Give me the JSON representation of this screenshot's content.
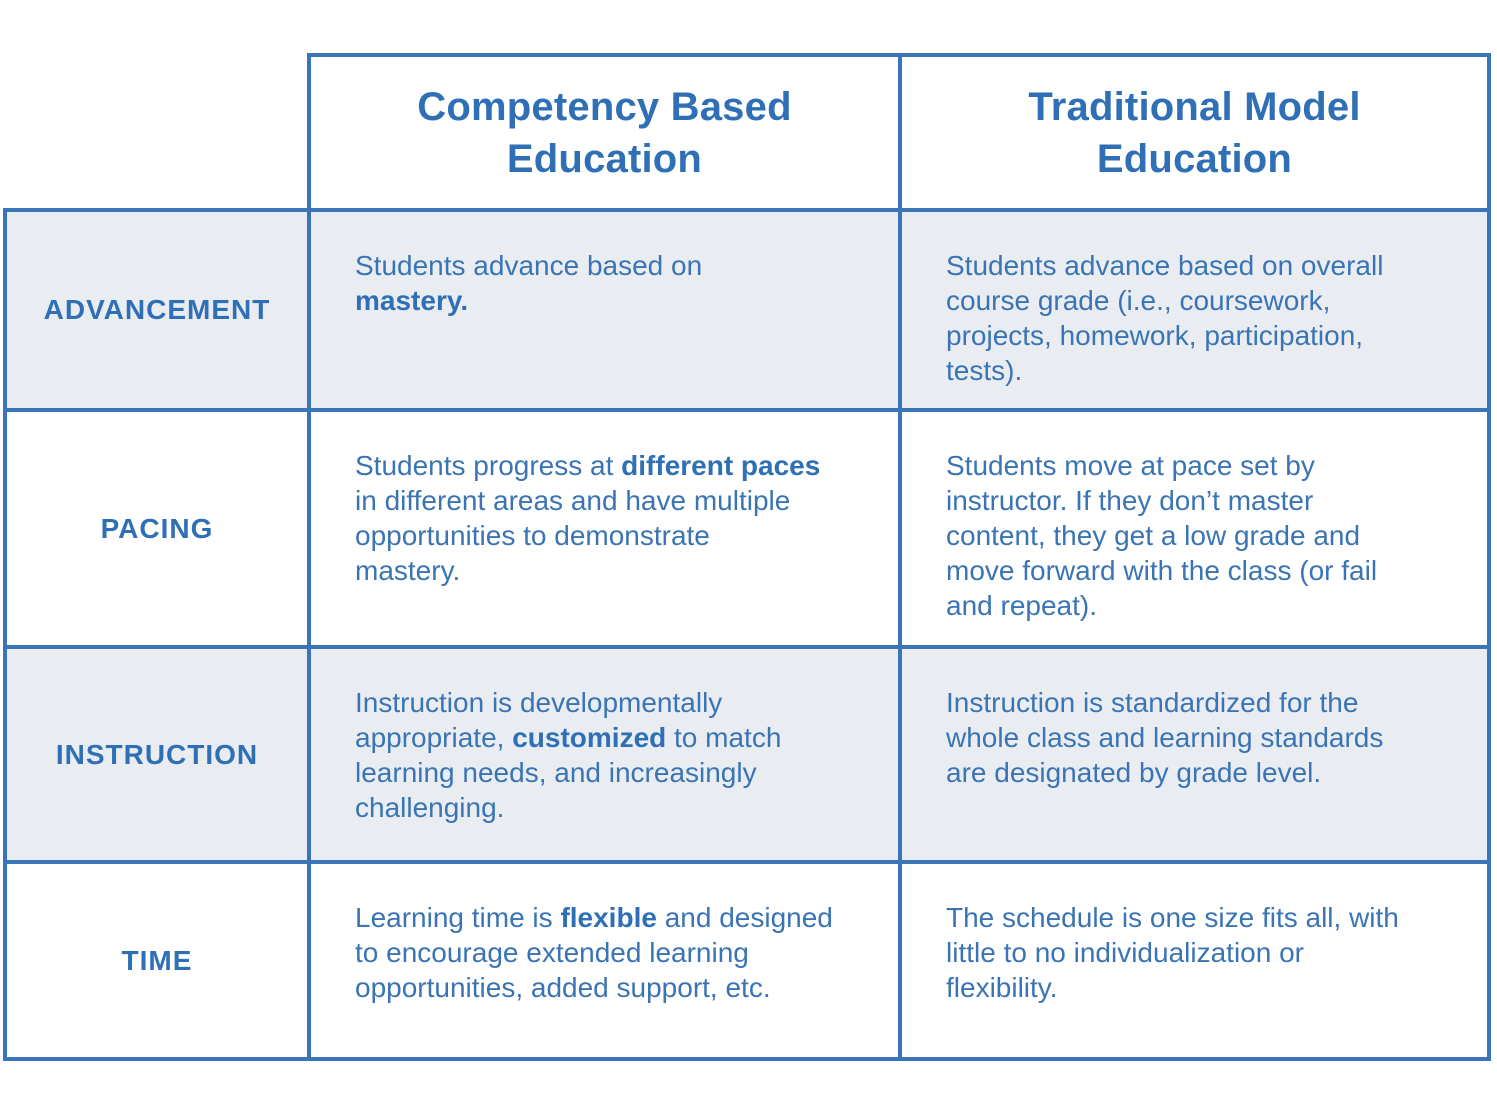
{
  "colors": {
    "accent": "#2e6fb6",
    "body-text": "#3a74b4",
    "border": "#3a75ba",
    "row-shade": "#e9edf2",
    "background": "#ffffff"
  },
  "table": {
    "column_headers": [
      "Competency Based\nEducation",
      "Traditional Model\nEducation"
    ],
    "rows": [
      {
        "label": "ADVANCEMENT",
        "cbe": [
          {
            "text": "Students advance based on\n",
            "bold": false
          },
          {
            "text": "mastery.",
            "bold": true
          }
        ],
        "traditional": [
          {
            "text": "Students advance based on overall\ncourse grade (i.e., coursework,\nprojects, homework, participation,\ntests).",
            "bold": false
          }
        ]
      },
      {
        "label": "PACING",
        "cbe": [
          {
            "text": "Students progress at ",
            "bold": false
          },
          {
            "text": "different paces",
            "bold": true
          },
          {
            "text": "\nin different areas and have multiple\nopportunities to demonstrate\nmastery.",
            "bold": false
          }
        ],
        "traditional": [
          {
            "text": "Students move at pace set by\ninstructor. If they don’t master\ncontent, they get a low grade and\nmove forward with the class (or fail\nand repeat).",
            "bold": false
          }
        ]
      },
      {
        "label": "INSTRUCTION",
        "cbe": [
          {
            "text": "Instruction is developmentally\nappropriate, ",
            "bold": false
          },
          {
            "text": "customized",
            "bold": true
          },
          {
            "text": " to match\nlearning needs, and increasingly\nchallenging.",
            "bold": false
          }
        ],
        "traditional": [
          {
            "text": "Instruction is standardized for the\nwhole class and learning standards\nare designated by grade level.",
            "bold": false
          }
        ]
      },
      {
        "label": "TIME",
        "cbe": [
          {
            "text": "Learning time is ",
            "bold": false
          },
          {
            "text": "flexible",
            "bold": true
          },
          {
            "text": " and designed\nto encourage extended learning\nopportunities, added support, etc.",
            "bold": false
          }
        ],
        "traditional": [
          {
            "text": "The schedule is one size fits all, with\nlittle to no individualization or\nflexibility.",
            "bold": false
          }
        ]
      }
    ]
  },
  "chart_data": {
    "type": "table",
    "columns": [
      "",
      "Competency Based Education",
      "Traditional Model Education"
    ],
    "rows": [
      [
        "ADVANCEMENT",
        "Students advance based on mastery.",
        "Students advance based on overall course grade (i.e., coursework, projects, homework, participation, tests)."
      ],
      [
        "PACING",
        "Students progress at different paces in different areas and have multiple opportunities to demonstrate mastery.",
        "Students move at pace set by instructor. If they don’t master content, they get a low grade and move forward with the class (or fail and repeat)."
      ],
      [
        "INSTRUCTION",
        "Instruction is developmentally appropriate, customized to match learning needs, and increasingly challenging.",
        "Instruction is standardized for the whole class and learning standards are designated by grade level."
      ],
      [
        "TIME",
        "Learning time is flexible and designed to encourage extended learning opportunities, added support, etc.",
        "The schedule is one size fits all, with little to no individualization or flexibility."
      ]
    ]
  }
}
